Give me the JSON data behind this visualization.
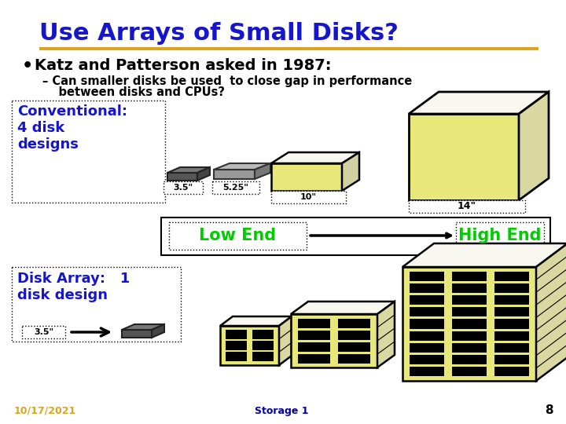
{
  "title": "Use Arrays of Small Disks?",
  "title_color": "#1515CC",
  "title_fontsize": 22,
  "separator_color": "#DAA520",
  "bg_color": "#FFFFFF",
  "bullet_text": "Katz and Patterson asked in 1987:",
  "bullet_color": "#000000",
  "bullet_fontsize": 14,
  "sub_bullet_line1": "– Can smaller disks be used  to close gap in performance",
  "sub_bullet_line2": "    between disks and CPUs?",
  "sub_bullet_color": "#000000",
  "sub_bullet_fontsize": 10.5,
  "conventional_label": "Conventional:\n4 disk\ndesigns",
  "conventional_color": "#1515CC",
  "disk_array_label": "Disk Array:   1\ndisk design",
  "disk_array_color": "#1515CC",
  "low_end_color": "#00CC00",
  "high_end_color": "#00CC00",
  "size_35": "3.5\"",
  "size_525": "5.25\"",
  "size_10": "10\"",
  "size_14": "14\"",
  "footer_date": "10/17/2021",
  "footer_date_color": "#DAA520",
  "footer_title": "Storage 1",
  "footer_title_color": "#0000AA",
  "footer_page": "8",
  "footer_page_color": "#000000",
  "box_border_color": "#000000",
  "disk_fill_yellow": "#E8E87A",
  "disk_fill_white": "#F8F8F0",
  "disk_fill_gray": "#AAAAAA",
  "arrow_color": "#111111"
}
